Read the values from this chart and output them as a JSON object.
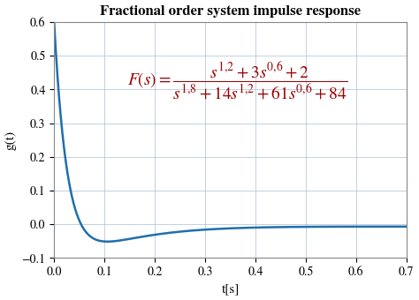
{
  "title": "Fractional order system impulse response",
  "xlabel": "t[s]",
  "ylabel": "g(t)",
  "xlim": [
    0,
    0.7
  ],
  "ylim": [
    -0.1,
    0.6
  ],
  "xticks": [
    0,
    0.1,
    0.2,
    0.3,
    0.4,
    0.5,
    0.6,
    0.7
  ],
  "yticks": [
    -0.1,
    0,
    0.1,
    0.2,
    0.3,
    0.4,
    0.5,
    0.6
  ],
  "line_color": "#1f6fad",
  "formula_color": "#990000",
  "background_color": "#ffffff",
  "title_fontsize": 12,
  "label_fontsize": 11,
  "tick_fontsize": 10,
  "formula_fontsize": 14,
  "curve_a1": 0.75,
  "curve_b1": 38.0,
  "curve_a2": -0.175,
  "curve_b2": 7.5,
  "curve_a3": 0.045,
  "curve_b3": 3.0,
  "curve_a4": -0.02,
  "curve_b4": 0.8
}
